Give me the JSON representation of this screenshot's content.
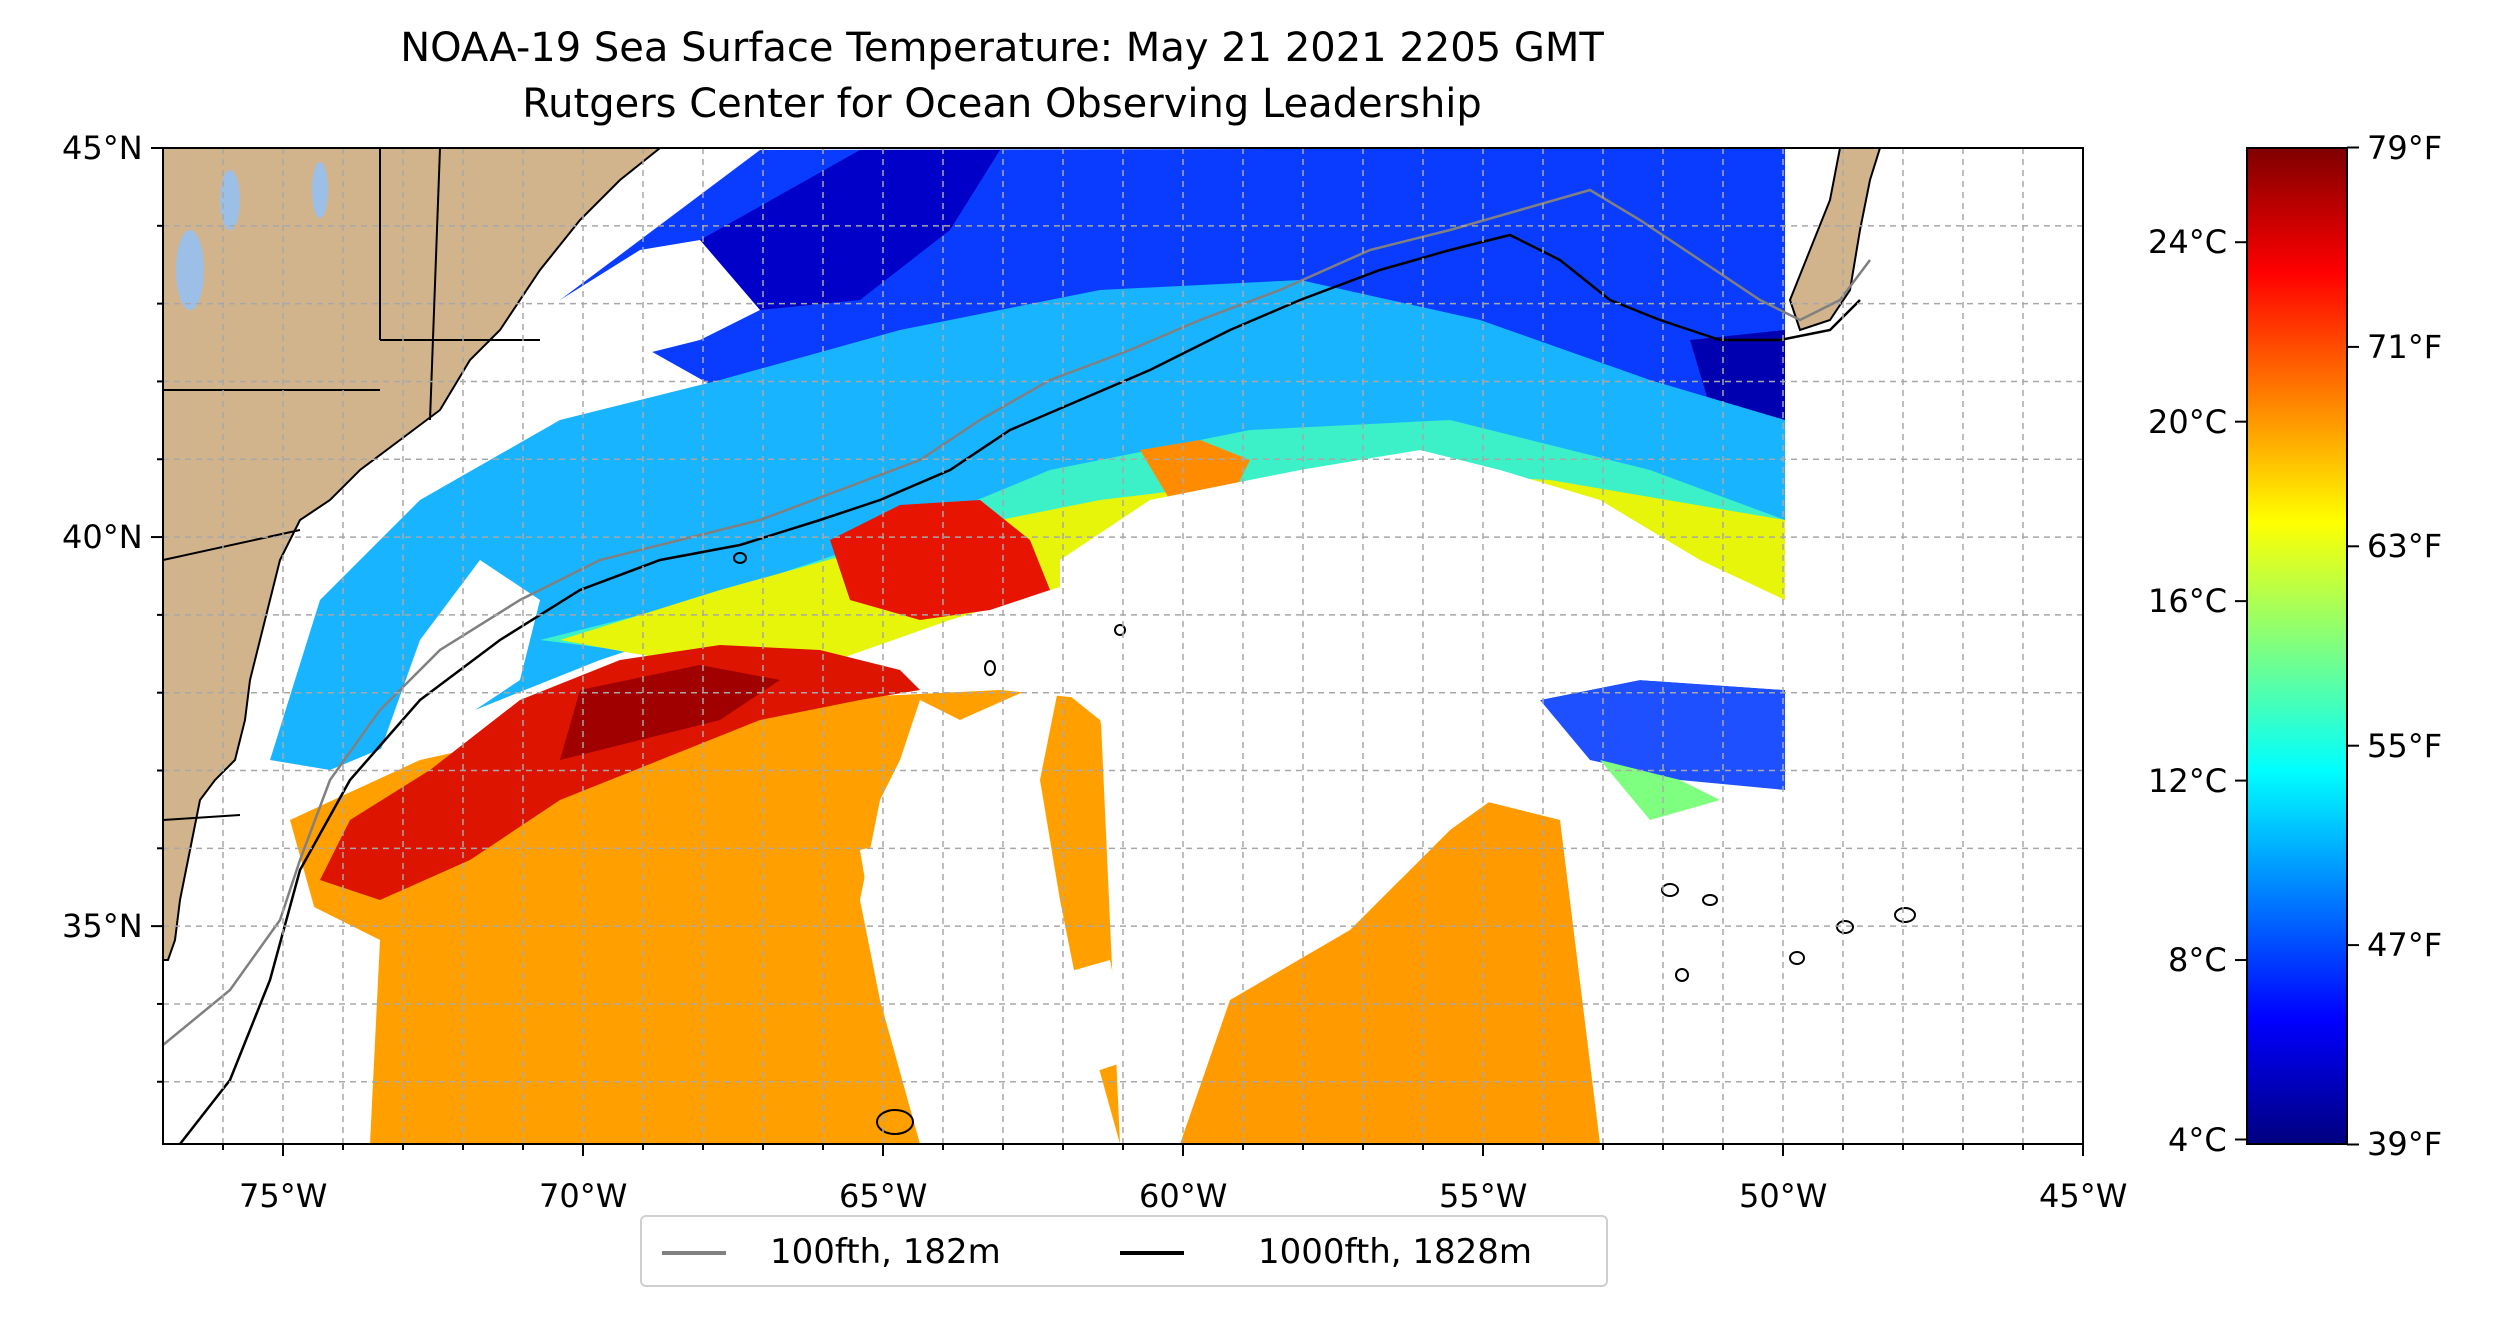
{
  "title": {
    "line1": "NOAA-19 Sea Surface Temperature: May 21 2021 2205 GMT",
    "line2": "Rutgers Center for Ocean Observing Leadership"
  },
  "map": {
    "projection": "equirectangular",
    "lon_range": [
      -77,
      -45
    ],
    "lat_range": [
      32.2,
      45
    ],
    "lon_ticks": [
      {
        "value": -75,
        "label": "75°W"
      },
      {
        "value": -70,
        "label": "70°W"
      },
      {
        "value": -65,
        "label": "65°W"
      },
      {
        "value": -60,
        "label": "60°W"
      },
      {
        "value": -55,
        "label": "55°W"
      },
      {
        "value": -50,
        "label": "50°W"
      },
      {
        "value": -45,
        "label": "45°W"
      }
    ],
    "lat_ticks": [
      {
        "value": 45,
        "label": "45°N"
      },
      {
        "value": 40,
        "label": "40°N"
      },
      {
        "value": 35,
        "label": "35°N"
      }
    ],
    "gridlines": "dashed",
    "land_color": "#d2b48c",
    "missing_data_color": "#ffffff",
    "colormap": "jet"
  },
  "colorbar": {
    "range_c": [
      3.9,
      26.1
    ],
    "celsius_ticks": [
      {
        "value": 4,
        "label": "4°C"
      },
      {
        "value": 8,
        "label": "8°C"
      },
      {
        "value": 12,
        "label": "12°C"
      },
      {
        "value": 16,
        "label": "16°C"
      },
      {
        "value": 20,
        "label": "20°C"
      },
      {
        "value": 24,
        "label": "24°C"
      }
    ],
    "fahrenheit_ticks": [
      {
        "value": 39,
        "label": "39°F"
      },
      {
        "value": 47,
        "label": "47°F"
      },
      {
        "value": 55,
        "label": "55°F"
      },
      {
        "value": 63,
        "label": "63°F"
      },
      {
        "value": 71,
        "label": "71°F"
      },
      {
        "value": 79,
        "label": "79°F"
      }
    ],
    "colors": [
      "#00007f",
      "#0000ff",
      "#007fff",
      "#00ffff",
      "#7fff7f",
      "#ffff00",
      "#ff7f00",
      "#ff0000",
      "#7f0000"
    ]
  },
  "legend": {
    "items": [
      {
        "label": "100fth, 182m",
        "color": "#808080"
      },
      {
        "label": "1000fth, 1828m",
        "color": "#000000"
      }
    ]
  }
}
